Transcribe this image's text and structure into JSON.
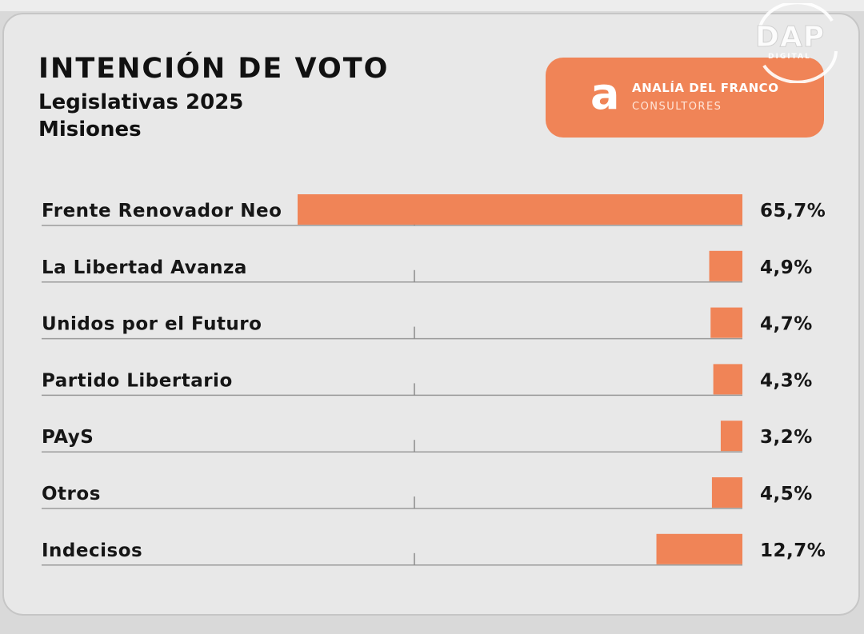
{
  "header": {
    "title": "INTENCIÓN DE VOTO",
    "subtitle_1": "Legislativas 2025",
    "subtitle_2": "Misiones"
  },
  "logo": {
    "mark": "a",
    "name": "ANALÍA DEL FRANCO",
    "tagline": "CONSULTORES",
    "color": "#f08457"
  },
  "watermark": {
    "text": "DAP",
    "sub": "DIGITAL"
  },
  "chart_data": {
    "type": "bar",
    "orientation": "horizontal",
    "categories": [
      "Frente Renovador Neo",
      "La Libertad Avanza",
      "Unidos por el Futuro",
      "Partido Libertario",
      "PAyS",
      "Otros",
      "Indecisos"
    ],
    "values": [
      65.7,
      4.9,
      4.7,
      4.3,
      3.2,
      4.5,
      12.7
    ],
    "value_labels": [
      "65,7%",
      "4,9%",
      "4,7%",
      "4,3%",
      "3,2%",
      "4,5%",
      "12,7%"
    ],
    "title": "INTENCIÓN DE VOTO",
    "xlabel": "",
    "ylabel": "",
    "xlim": [
      0,
      65.7
    ],
    "bar_color": "#f08457",
    "grid": false,
    "legend": "none"
  }
}
